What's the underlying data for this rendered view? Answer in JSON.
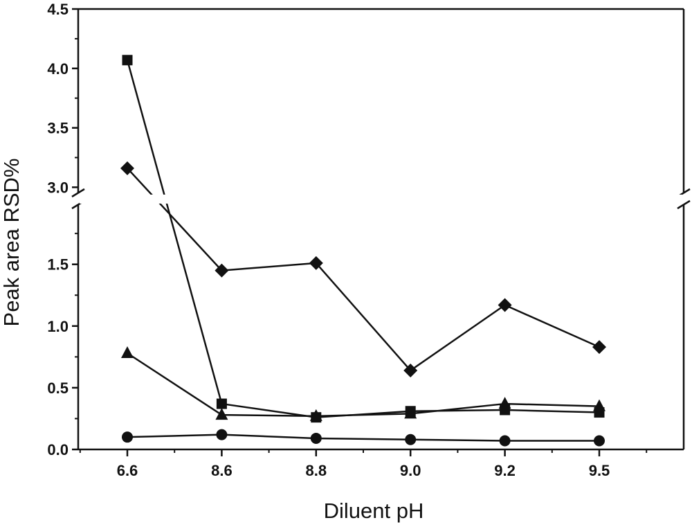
{
  "chart_data": {
    "type": "line",
    "title": "",
    "xlabel": "Diluent pH",
    "ylabel": "Peak area RSD%",
    "categories": [
      "6.6",
      "8.6",
      "8.8",
      "9.0",
      "9.2",
      "9.5"
    ],
    "y_ticks": [
      "0.0",
      "0.5",
      "1.0",
      "1.5",
      "3.0",
      "3.5",
      "4.0",
      "4.5"
    ],
    "ylim_lower_segment": [
      0,
      1.9
    ],
    "ylim_upper_segment": [
      2.95,
      4.5
    ],
    "axis_break": "between 1.9 and 2.95 on the y axis",
    "grid": false,
    "legend": "none",
    "series": [
      {
        "marker": "square",
        "values": [
          4.07,
          0.37,
          0.26,
          0.31,
          0.32,
          0.3
        ]
      },
      {
        "marker": "diamond",
        "values": [
          3.16,
          1.45,
          1.51,
          0.64,
          1.17,
          0.83
        ]
      },
      {
        "marker": "triangle",
        "values": [
          0.78,
          0.28,
          0.27,
          0.29,
          0.37,
          0.35
        ]
      },
      {
        "marker": "circle",
        "values": [
          0.1,
          0.12,
          0.09,
          0.08,
          0.07,
          0.07
        ]
      }
    ]
  }
}
